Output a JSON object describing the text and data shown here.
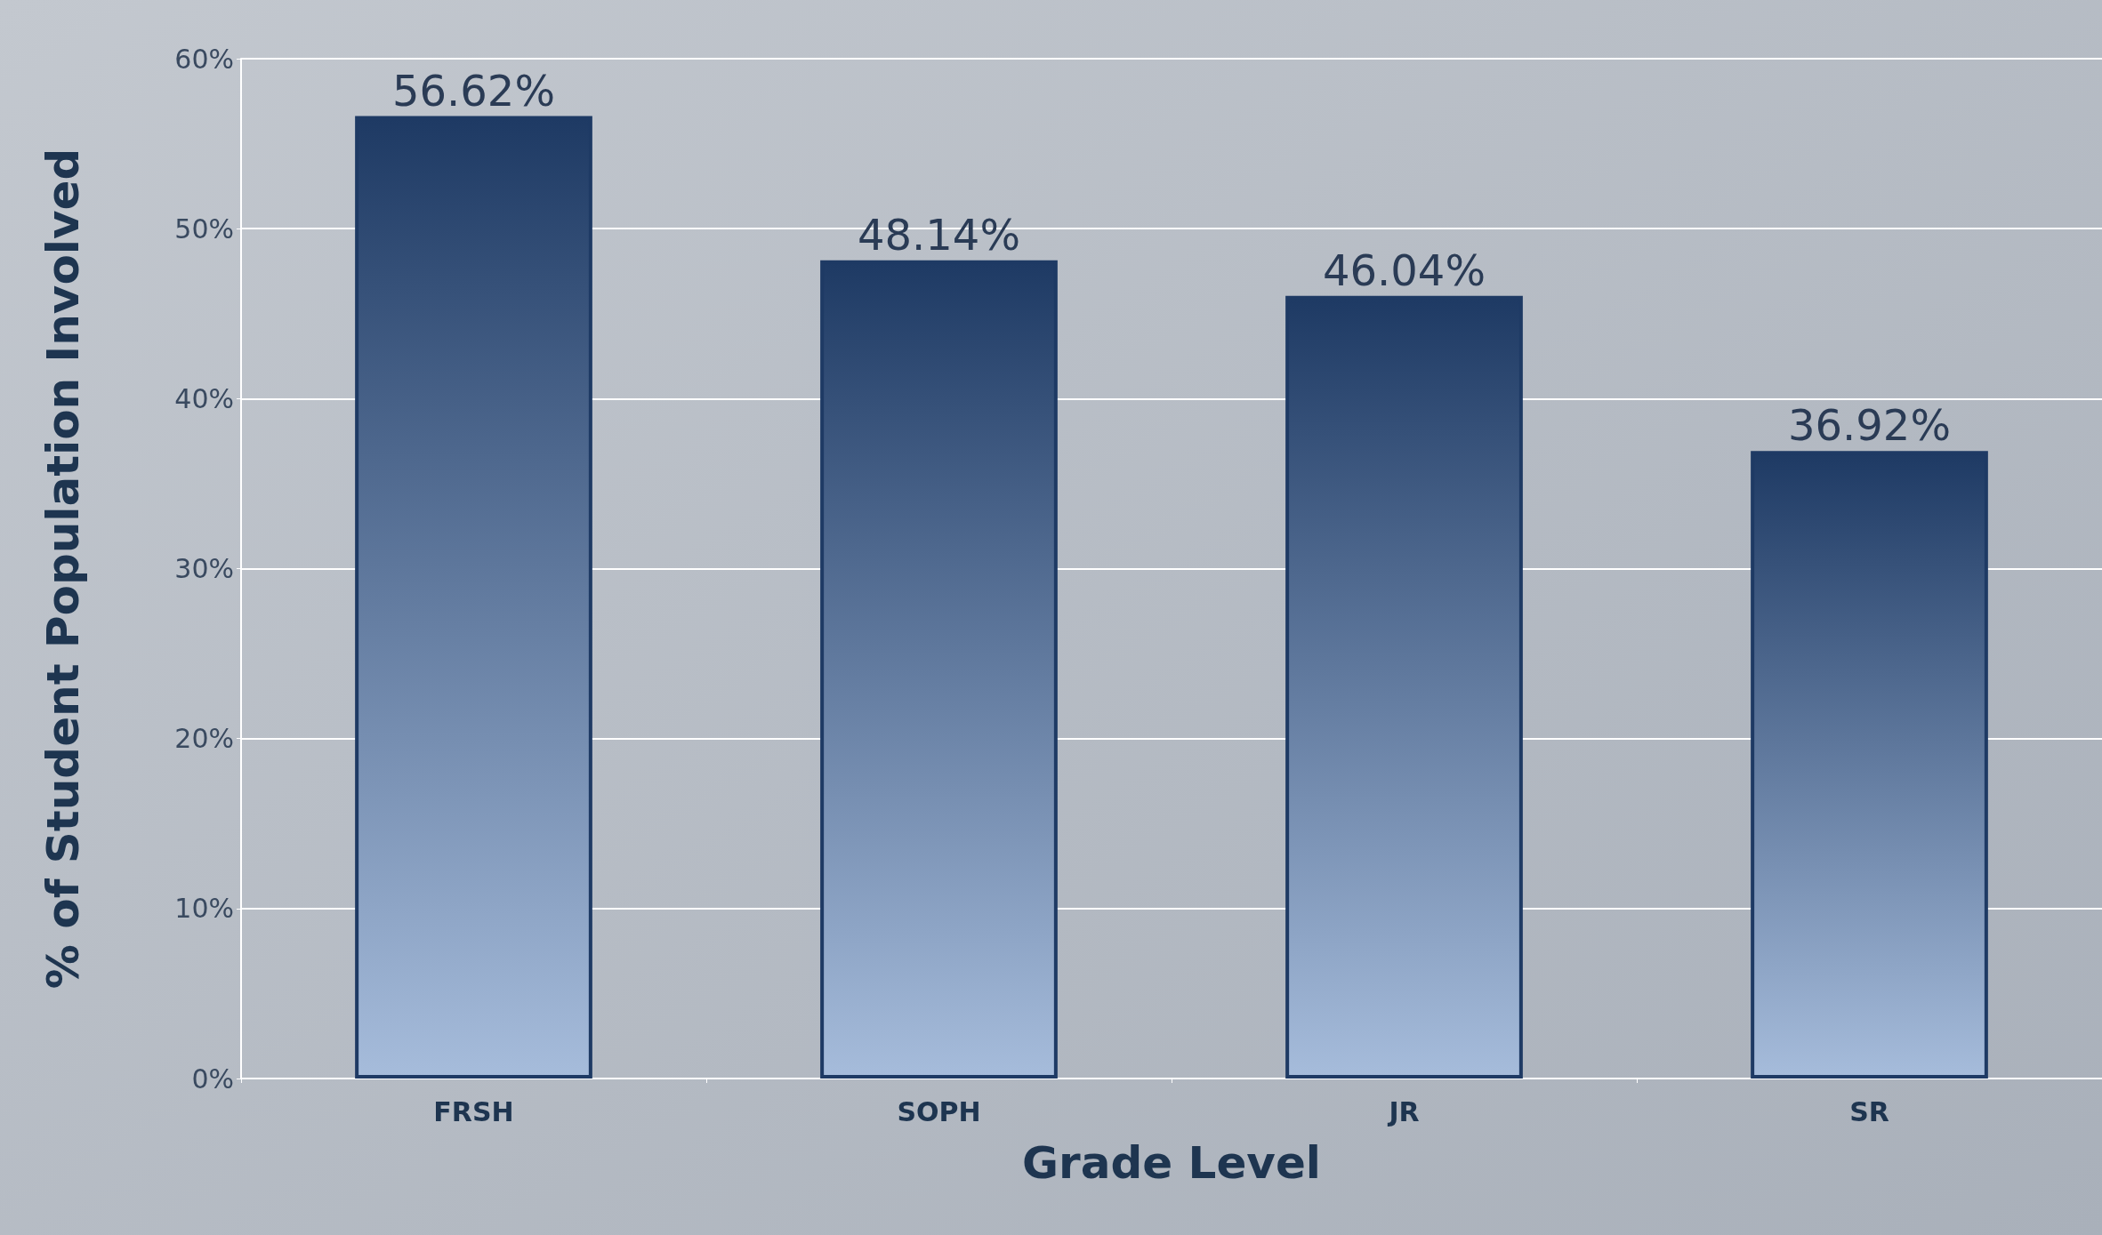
{
  "chart_data": {
    "type": "bar",
    "xlabel": "Grade Level",
    "ylabel": "% of Student Population Involved",
    "categories": [
      "FRSH",
      "SOPH",
      "JR",
      "SR"
    ],
    "values": [
      56.62,
      48.14,
      46.04,
      36.92
    ],
    "value_labels": [
      "56.62%",
      "48.14%",
      "46.04%",
      "36.92%"
    ],
    "color": "#1e3a64",
    "ylim": [
      0,
      60
    ],
    "yticks": [
      {
        "value": 0,
        "label": "0%"
      },
      {
        "value": 10,
        "label": "10%"
      },
      {
        "value": 20,
        "label": "20%"
      },
      {
        "value": 30,
        "label": "30%"
      },
      {
        "value": 40,
        "label": "40%"
      },
      {
        "value": 50,
        "label": "50%"
      },
      {
        "value": 60,
        "label": "60%"
      }
    ],
    "grid": "y"
  }
}
